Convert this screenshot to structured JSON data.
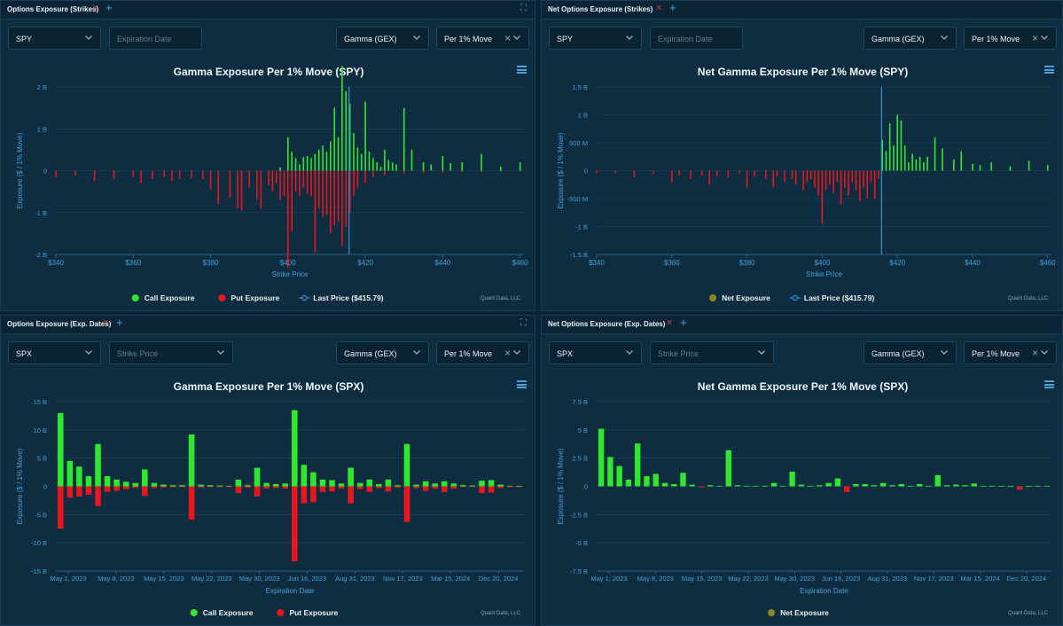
{
  "colors": {
    "call": "#2ee82e",
    "put": "#e8161f",
    "net_pos": "#2ee82e",
    "net_neg": "#e8161f",
    "axis_text": "#4a9fd8",
    "grid": "#1d4761",
    "last_price": "#3a8fd0"
  },
  "panels": [
    {
      "tab_title": "Options Exposure (Strikes)",
      "controls": {
        "symbol": "SPY",
        "filter_placeholder": "Expiration Date",
        "metric": "Gamma (GEX)",
        "unit": "Per 1% Move"
      },
      "credit": "Quant Data, LLC",
      "legend": [
        "Call Exposure",
        "Put Exposure",
        "Last Price ($415.79)"
      ]
    },
    {
      "tab_title": "Net Options Exposure (Strikes)",
      "controls": {
        "symbol": "SPY",
        "filter_placeholder": "Expiration Date",
        "metric": "Gamma (GEX)",
        "unit": "Per 1% Move"
      },
      "credit": "Quant Data, LLC",
      "legend": [
        "Net Exposure",
        "Last Price ($415.79)"
      ]
    },
    {
      "tab_title": "Options Exposure (Exp. Dates)",
      "controls": {
        "symbol": "SPX",
        "filter_placeholder": "Strike Price",
        "metric": "Gamma (GEX)",
        "unit": "Per 1% Move"
      },
      "credit": "Quant Data, LLC",
      "legend": [
        "Call Exposure",
        "Put Exposure"
      ]
    },
    {
      "tab_title": "Net Options Exposure (Exp. Dates)",
      "controls": {
        "symbol": "SPX",
        "filter_placeholder": "Strike Price",
        "metric": "Gamma (GEX)",
        "unit": "Per 1% Move"
      },
      "credit": "Quant Data, LLC",
      "legend": [
        "Net Exposure"
      ]
    }
  ],
  "chart_data": [
    {
      "type": "bar",
      "title": "Gamma Exposure Per 1% Move (SPY)",
      "xlabel": "Strike Price",
      "ylabel": "Exposure ($ / 1% Move)",
      "xlim": [
        340,
        461
      ],
      "ylim": [
        -2,
        2
      ],
      "x_ticks": [
        340,
        360,
        380,
        400,
        420,
        440,
        460
      ],
      "x_tick_labels": [
        "$340",
        "$360",
        "$380",
        "$400",
        "$420",
        "$440",
        "$460"
      ],
      "y_ticks": [
        -2,
        -1,
        0,
        1,
        2
      ],
      "y_tick_labels": [
        "-2 B",
        "-1 B",
        "0",
        "1 B",
        "2 B"
      ],
      "last_price": 415.79,
      "series": [
        {
          "name": "Call Exposure",
          "x": [
            398,
            400,
            401,
            402,
            403,
            404,
            405,
            406,
            407,
            408,
            409,
            410,
            411,
            412,
            413,
            414,
            415,
            416,
            417,
            418,
            419,
            420,
            421,
            422,
            423,
            424,
            425,
            426,
            427,
            428,
            430,
            432,
            435,
            437,
            440,
            442,
            445,
            450,
            455,
            460
          ],
          "values": [
            0.08,
            0.8,
            0.45,
            0.3,
            0.15,
            0.32,
            0.35,
            0.3,
            0.4,
            0.5,
            0.6,
            0.45,
            0.7,
            1.5,
            0.8,
            2.5,
            1.9,
            1.6,
            0.9,
            0.55,
            0.4,
            1.65,
            0.45,
            0.3,
            0.2,
            0.1,
            0.5,
            0.25,
            0.2,
            0.15,
            1.5,
            0.5,
            0.2,
            0.15,
            0.35,
            0.18,
            0.2,
            0.4,
            0.1,
            0.2
          ]
        },
        {
          "name": "Put Exposure",
          "x": [
            340,
            345,
            350,
            355,
            360,
            362,
            365,
            368,
            370,
            372,
            375,
            378,
            380,
            382,
            385,
            387,
            388,
            390,
            392,
            393,
            395,
            396,
            397,
            398,
            399,
            400,
            401,
            402,
            403,
            404,
            405,
            406,
            407,
            408,
            409,
            410,
            411,
            412,
            413,
            414,
            415,
            416,
            417,
            418,
            420,
            422,
            425,
            430,
            435,
            440,
            445,
            450,
            455,
            460
          ],
          "values": [
            -0.15,
            -0.12,
            -0.25,
            -0.2,
            -0.15,
            -0.3,
            -0.2,
            -0.15,
            -0.25,
            -0.2,
            -0.18,
            -0.2,
            -0.45,
            -0.8,
            -0.65,
            -0.9,
            -0.95,
            -0.4,
            -0.7,
            -0.9,
            -0.35,
            -0.5,
            -0.3,
            -0.7,
            -0.6,
            -2.3,
            -1.45,
            -0.5,
            -0.6,
            -0.4,
            -0.55,
            -0.6,
            -1.95,
            -0.9,
            -1.1,
            -1.05,
            -1.5,
            -1.3,
            -1.2,
            -1.8,
            -1.35,
            -1.0,
            -0.6,
            -0.4,
            -0.3,
            -0.15,
            -0.1,
            -0.08,
            -0.05,
            -0.05,
            -0.03,
            -0.03,
            -0.02,
            -0.02
          ]
        }
      ]
    },
    {
      "type": "bar",
      "title": "Net Gamma Exposure Per 1% Move (SPY)",
      "xlabel": "Strike Price",
      "ylabel": "Exposure ($ / 1% Move)",
      "xlim": [
        340,
        461
      ],
      "ylim": [
        -1.5,
        1.5
      ],
      "x_ticks": [
        340,
        360,
        380,
        400,
        420,
        440,
        460
      ],
      "x_tick_labels": [
        "$340",
        "$360",
        "$380",
        "$400",
        "$420",
        "$440",
        "$460"
      ],
      "y_ticks": [
        -1.5,
        -1,
        -0.5,
        0,
        0.5,
        1,
        1.5
      ],
      "y_tick_labels": [
        "-1.5 B",
        "-1 B",
        "-500 M",
        "0",
        "500 M",
        "1 B",
        "1.5 B"
      ],
      "last_price": 415.79,
      "series": [
        {
          "name": "Net Exposure",
          "x": [
            340,
            345,
            350,
            355,
            360,
            362,
            365,
            368,
            370,
            372,
            375,
            378,
            380,
            382,
            385,
            387,
            388,
            390,
            392,
            393,
            395,
            396,
            397,
            398,
            399,
            400,
            401,
            402,
            403,
            404,
            405,
            406,
            407,
            408,
            409,
            410,
            411,
            412,
            413,
            414,
            415,
            416,
            417,
            418,
            419,
            420,
            421,
            422,
            423,
            424,
            425,
            426,
            427,
            428,
            430,
            432,
            435,
            437,
            440,
            442,
            445,
            450,
            455,
            460
          ],
          "values": [
            -0.05,
            -0.04,
            -0.12,
            -0.06,
            -0.2,
            -0.08,
            -0.15,
            -0.08,
            -0.25,
            -0.1,
            -0.12,
            -0.05,
            -0.3,
            -0.1,
            -0.15,
            -0.3,
            -0.1,
            -0.2,
            -0.15,
            -0.25,
            -0.35,
            -0.2,
            -0.15,
            -0.3,
            -0.45,
            -0.95,
            -0.35,
            -0.25,
            -0.4,
            -0.2,
            -0.6,
            -0.3,
            -0.45,
            -0.2,
            -0.35,
            -0.55,
            -0.3,
            -0.5,
            -0.2,
            -0.5,
            -0.15,
            0.55,
            0.35,
            0.85,
            0.45,
            1.0,
            0.9,
            0.45,
            0.15,
            0.3,
            0.2,
            0.25,
            0.15,
            0.25,
            0.6,
            0.4,
            0.2,
            0.35,
            0.12,
            0.1,
            0.15,
            0.08,
            0.18,
            0.1
          ]
        }
      ]
    },
    {
      "type": "bar",
      "title": "Gamma Exposure Per 1% Move (SPX)",
      "xlabel": "Expiration Date",
      "ylabel": "Exposure ($ / 1% Move)",
      "ylim": [
        -15,
        15
      ],
      "y_ticks": [
        -15,
        -10,
        -5,
        0,
        5,
        10,
        15
      ],
      "y_tick_labels": [
        "-15 B",
        "-10 B",
        "-5 B",
        "0",
        "5 B",
        "10 B",
        "15 B"
      ],
      "x_tick_labels": [
        "May 1, 2023",
        "May 8, 2023",
        "May 15, 2023",
        "May 22, 2023",
        "May 30, 2023",
        "Jun 16, 2023",
        "Aug 31, 2023",
        "Nov 17, 2023",
        "Mar 15, 2024",
        "Dec 20, 2024"
      ],
      "series": [
        {
          "name": "Call Exposure",
          "values": [
            13,
            4.5,
            3.5,
            1.8,
            7.5,
            1.8,
            1.2,
            0.8,
            0.6,
            3,
            0.6,
            0.3,
            0.2,
            0.2,
            9.2,
            0.3,
            0.2,
            0.15,
            0.1,
            1.2,
            0.2,
            3.3,
            0.6,
            0.4,
            0.5,
            13.5,
            3.8,
            2.5,
            1.2,
            1.1,
            0.5,
            3.3,
            0.6,
            1.2,
            0.4,
            1.2,
            0.2,
            7.5,
            0.3,
            0.9,
            0.5,
            0.9,
            0.5,
            0.2,
            0.15,
            1.0,
            1.1,
            0.3,
            0.1,
            0.1
          ]
        },
        {
          "name": "Put Exposure",
          "values": [
            -7.5,
            -2,
            -1.8,
            -1.5,
            -3.5,
            -1,
            -0.8,
            -0.5,
            -0.3,
            -1.7,
            -0.3,
            -0.2,
            -0.1,
            -0.1,
            -5.9,
            -0.2,
            -0.1,
            -0.1,
            -0.05,
            -1.2,
            -0.2,
            -1.8,
            -0.4,
            -0.3,
            -0.4,
            -13.3,
            -3,
            -2.8,
            -1,
            -0.9,
            -0.4,
            -3,
            -0.5,
            -1,
            -0.3,
            -0.9,
            -0.2,
            -6.3,
            -0.3,
            -0.8,
            -0.4,
            -1,
            -0.4,
            -0.1,
            -0.1,
            -1.2,
            -1.1,
            -0.3,
            -0.05,
            -0.05
          ]
        }
      ]
    },
    {
      "type": "bar",
      "title": "Net Gamma Exposure Per 1% Move (SPX)",
      "xlabel": "Expiration Date",
      "ylabel": "Exposure ($ / 1% Move)",
      "ylim": [
        -7.5,
        7.5
      ],
      "y_ticks": [
        -7.5,
        -5,
        -2.5,
        0,
        2.5,
        5,
        7.5
      ],
      "y_tick_labels": [
        "-7.5 B",
        "-5 B",
        "-2.5 B",
        "0",
        "2.5 B",
        "5 B",
        "7.5 B"
      ],
      "x_tick_labels": [
        "May 1, 2023",
        "May 8, 2023",
        "May 15, 2023",
        "May 22, 2023",
        "May 30, 2023",
        "Jun 16, 2023",
        "Aug 31, 2023",
        "Nov 17, 2023",
        "Mar 15, 2024",
        "Dec 20, 2024"
      ],
      "series": [
        {
          "name": "Net Exposure",
          "values": [
            5.1,
            2.6,
            1.8,
            0.6,
            3.8,
            0.9,
            1.1,
            0.3,
            0.2,
            1.2,
            0.15,
            -0.1,
            0.1,
            0.05,
            3.2,
            0.1,
            0.05,
            0.05,
            0.05,
            0.3,
            0.05,
            1.3,
            0.15,
            0.05,
            0.1,
            0.3,
            0.7,
            -0.5,
            0.2,
            0.2,
            0.1,
            0.3,
            0.1,
            0.2,
            0.05,
            0.2,
            0.05,
            1.0,
            0.1,
            0.15,
            0.1,
            0.25,
            0.05,
            0.05,
            0.05,
            0.02,
            -0.3,
            0.02,
            0.05,
            0.05
          ]
        }
      ]
    }
  ]
}
